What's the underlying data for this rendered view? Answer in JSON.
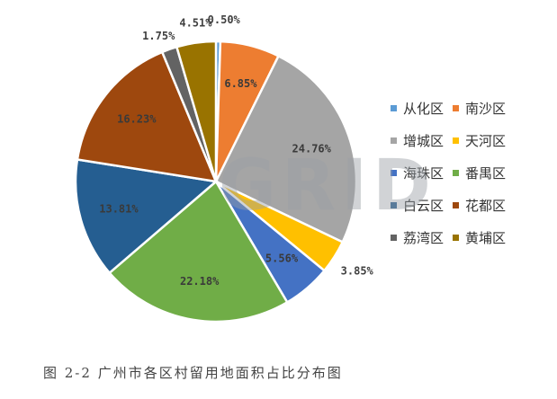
{
  "caption": "图 2-2 广州市各区村留用地面积占比分布图",
  "watermark": "GRID",
  "chart_data": {
    "type": "pie",
    "title": "",
    "start_angle_deg": 0,
    "direction": "clockwise",
    "legend_position": "right",
    "slices": [
      {
        "label": "从化区",
        "value": 0.5,
        "display": "0.50%",
        "color": "#5B9BD5"
      },
      {
        "label": "南沙区",
        "value": 6.85,
        "display": "6.85%",
        "color": "#ED7D31"
      },
      {
        "label": "增城区",
        "value": 24.76,
        "display": "24.76%",
        "color": "#A5A5A5"
      },
      {
        "label": "天河区",
        "value": 3.85,
        "display": "3.85%",
        "color": "#FFC000"
      },
      {
        "label": "海珠区",
        "value": 5.56,
        "display": "5.56%",
        "color": "#4472C4"
      },
      {
        "label": "番禺区",
        "value": 22.18,
        "display": "22.18%",
        "color": "#70AD47"
      },
      {
        "label": "白云区",
        "value": 13.81,
        "display": "13.81%",
        "color": "#255E91"
      },
      {
        "label": "花都区",
        "value": 16.23,
        "display": "16.23%",
        "color": "#9E480E"
      },
      {
        "label": "荔湾区",
        "value": 1.75,
        "display": "1.75%",
        "color": "#636363"
      },
      {
        "label": "黄埔区",
        "value": 4.51,
        "display": "4.51%",
        "color": "#997300"
      }
    ]
  }
}
